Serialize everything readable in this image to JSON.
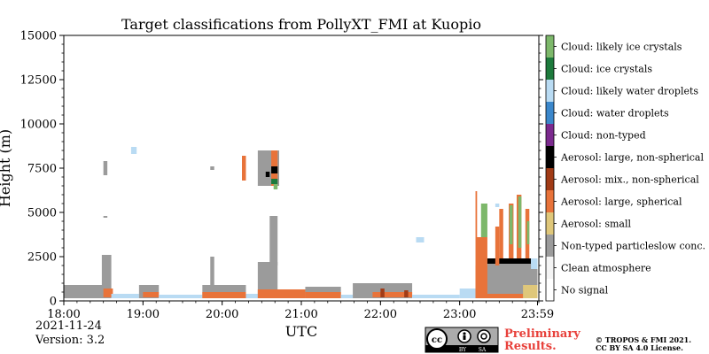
{
  "chart_data": {
    "type": "heatmap",
    "title": "Target classifications from PollyXT_FMI at Kuopio",
    "xlabel": "UTC",
    "ylabel": "Height (m)",
    "xlim": [
      18.0,
      24.0
    ],
    "ylim": [
      0,
      15000
    ],
    "x_ticks": [
      {
        "value": 18.0,
        "label": "18:00"
      },
      {
        "value": 19.0,
        "label": "19:00"
      },
      {
        "value": 20.0,
        "label": "20:00"
      },
      {
        "value": 21.0,
        "label": "21:00"
      },
      {
        "value": 22.0,
        "label": "22:00"
      },
      {
        "value": 23.0,
        "label": "23:00"
      },
      {
        "value": 23.983,
        "label": "23:59"
      }
    ],
    "y_ticks": [
      {
        "value": 0,
        "label": "0"
      },
      {
        "value": 2500,
        "label": "2500"
      },
      {
        "value": 5000,
        "label": "5000"
      },
      {
        "value": 7500,
        "label": "7500"
      },
      {
        "value": 10000,
        "label": "10000"
      },
      {
        "value": 12500,
        "label": "12500"
      },
      {
        "value": 15000,
        "label": "15000"
      }
    ],
    "classes": [
      {
        "id": 0,
        "label": "No signal",
        "color": "#ffffff"
      },
      {
        "id": 1,
        "label": "Clean atmosphere",
        "color": "#f4f4f4"
      },
      {
        "id": 2,
        "label": "Non-typed particleslow conc.",
        "color": "#9b9b9b"
      },
      {
        "id": 3,
        "label": "Aerosol: small",
        "color": "#dfc77a"
      },
      {
        "id": 4,
        "label": "Aerosol: large, spherical",
        "color": "#e8733a"
      },
      {
        "id": 5,
        "label": "Aerosol: mix., non-spherical",
        "color": "#a13b16"
      },
      {
        "id": 6,
        "label": "Aerosol: large, non-spherical",
        "color": "#000000"
      },
      {
        "id": 7,
        "label": "Cloud: non-typed",
        "color": "#7b2a8e"
      },
      {
        "id": 8,
        "label": "Cloud: water droplets",
        "color": "#3b87cb"
      },
      {
        "id": 9,
        "label": "Cloud: likely water droplets",
        "color": "#b9dbf3"
      },
      {
        "id": 10,
        "label": "Cloud: ice crystals",
        "color": "#1d7a3c"
      },
      {
        "id": 11,
        "label": "Cloud: likely ice crystals",
        "color": "#7db86b"
      }
    ],
    "regions": [
      {
        "t0": 18.0,
        "t1": 18.5,
        "h0": 150,
        "h1": 900,
        "cls": 2
      },
      {
        "t0": 18.48,
        "t1": 18.6,
        "h0": 150,
        "h1": 2600,
        "cls": 2
      },
      {
        "t0": 18.5,
        "t1": 18.62,
        "h0": 200,
        "h1": 700,
        "cls": 4
      },
      {
        "t0": 18.5,
        "t1": 18.55,
        "h0": 7100,
        "h1": 7900,
        "cls": 2
      },
      {
        "t0": 18.5,
        "t1": 18.55,
        "h0": 4700,
        "h1": 4800,
        "cls": 2
      },
      {
        "t0": 18.6,
        "t1": 18.95,
        "h0": 150,
        "h1": 400,
        "cls": 9
      },
      {
        "t0": 18.85,
        "t1": 18.92,
        "h0": 8300,
        "h1": 8700,
        "cls": 9
      },
      {
        "t0": 18.95,
        "t1": 19.2,
        "h0": 150,
        "h1": 900,
        "cls": 2
      },
      {
        "t0": 19.0,
        "t1": 19.2,
        "h0": 200,
        "h1": 500,
        "cls": 4
      },
      {
        "t0": 19.2,
        "t1": 19.75,
        "h0": 150,
        "h1": 350,
        "cls": 9
      },
      {
        "t0": 19.75,
        "t1": 20.3,
        "h0": 150,
        "h1": 900,
        "cls": 2
      },
      {
        "t0": 19.75,
        "t1": 20.3,
        "h0": 150,
        "h1": 500,
        "cls": 4
      },
      {
        "t0": 19.85,
        "t1": 19.9,
        "h0": 900,
        "h1": 2500,
        "cls": 2
      },
      {
        "t0": 19.85,
        "t1": 19.9,
        "h0": 7400,
        "h1": 7600,
        "cls": 2
      },
      {
        "t0": 20.25,
        "t1": 20.3,
        "h0": 6800,
        "h1": 8200,
        "cls": 4
      },
      {
        "t0": 20.3,
        "t1": 20.45,
        "h0": 150,
        "h1": 400,
        "cls": 9
      },
      {
        "t0": 20.45,
        "t1": 20.7,
        "h0": 150,
        "h1": 2200,
        "cls": 2
      },
      {
        "t0": 20.45,
        "t1": 21.05,
        "h0": 150,
        "h1": 650,
        "cls": 4
      },
      {
        "t0": 20.6,
        "t1": 20.7,
        "h0": 2000,
        "h1": 4800,
        "cls": 2
      },
      {
        "t0": 20.45,
        "t1": 20.72,
        "h0": 6500,
        "h1": 8500,
        "cls": 2
      },
      {
        "t0": 20.62,
        "t1": 20.7,
        "h0": 6500,
        "h1": 8500,
        "cls": 4
      },
      {
        "t0": 20.62,
        "t1": 20.7,
        "h0": 7200,
        "h1": 7600,
        "cls": 6
      },
      {
        "t0": 20.62,
        "t1": 20.7,
        "h0": 6600,
        "h1": 6900,
        "cls": 10
      },
      {
        "t0": 20.55,
        "t1": 20.6,
        "h0": 7000,
        "h1": 7300,
        "cls": 6
      },
      {
        "t0": 20.65,
        "t1": 20.7,
        "h0": 6300,
        "h1": 6600,
        "cls": 11
      },
      {
        "t0": 21.05,
        "t1": 21.5,
        "h0": 150,
        "h1": 800,
        "cls": 2
      },
      {
        "t0": 21.05,
        "t1": 21.5,
        "h0": 150,
        "h1": 500,
        "cls": 4
      },
      {
        "t0": 21.5,
        "t1": 21.65,
        "h0": 150,
        "h1": 350,
        "cls": 9
      },
      {
        "t0": 21.65,
        "t1": 22.4,
        "h0": 150,
        "h1": 1000,
        "cls": 2
      },
      {
        "t0": 21.9,
        "t1": 22.4,
        "h0": 200,
        "h1": 500,
        "cls": 4
      },
      {
        "t0": 22.0,
        "t1": 22.05,
        "h0": 200,
        "h1": 700,
        "cls": 5
      },
      {
        "t0": 22.3,
        "t1": 22.35,
        "h0": 200,
        "h1": 600,
        "cls": 5
      },
      {
        "t0": 22.4,
        "t1": 23.0,
        "h0": 150,
        "h1": 350,
        "cls": 9
      },
      {
        "t0": 22.45,
        "t1": 22.55,
        "h0": 3300,
        "h1": 3600,
        "cls": 9
      },
      {
        "t0": 23.0,
        "t1": 23.2,
        "h0": 150,
        "h1": 700,
        "cls": 9
      },
      {
        "t0": 23.2,
        "t1": 23.983,
        "h0": 150,
        "h1": 2000,
        "cls": 4
      },
      {
        "t0": 23.2,
        "t1": 23.35,
        "h0": 150,
        "h1": 3600,
        "cls": 4
      },
      {
        "t0": 23.2,
        "t1": 23.22,
        "h0": 3600,
        "h1": 6200,
        "cls": 4
      },
      {
        "t0": 23.27,
        "t1": 23.35,
        "h0": 3600,
        "h1": 5500,
        "cls": 11
      },
      {
        "t0": 23.35,
        "t1": 23.983,
        "h0": 400,
        "h1": 2100,
        "cls": 2
      },
      {
        "t0": 23.35,
        "t1": 23.9,
        "h0": 2100,
        "h1": 2400,
        "cls": 6
      },
      {
        "t0": 23.45,
        "t1": 23.5,
        "h0": 2000,
        "h1": 4200,
        "cls": 4
      },
      {
        "t0": 23.5,
        "t1": 23.55,
        "h0": 2400,
        "h1": 5200,
        "cls": 4
      },
      {
        "t0": 23.62,
        "t1": 23.68,
        "h0": 2400,
        "h1": 5500,
        "cls": 4
      },
      {
        "t0": 23.63,
        "t1": 23.67,
        "h0": 3200,
        "h1": 5400,
        "cls": 11
      },
      {
        "t0": 23.72,
        "t1": 23.78,
        "h0": 2400,
        "h1": 6000,
        "cls": 4
      },
      {
        "t0": 23.74,
        "t1": 23.78,
        "h0": 3000,
        "h1": 5900,
        "cls": 11
      },
      {
        "t0": 23.83,
        "t1": 23.88,
        "h0": 2400,
        "h1": 5200,
        "cls": 4
      },
      {
        "t0": 23.85,
        "t1": 23.88,
        "h0": 3200,
        "h1": 4500,
        "cls": 11
      },
      {
        "t0": 23.45,
        "t1": 23.5,
        "h0": 5300,
        "h1": 5500,
        "cls": 9
      },
      {
        "t0": 23.8,
        "t1": 23.983,
        "h0": 150,
        "h1": 900,
        "cls": 3
      },
      {
        "t0": 23.9,
        "t1": 23.983,
        "h0": 1800,
        "h1": 2400,
        "cls": 9
      }
    ]
  },
  "footer": {
    "date": "2021-11-24",
    "version": "Version: 3.2",
    "preliminary_line1": "Preliminary",
    "preliminary_line2": "Results.",
    "copyright_line1": "© TROPOS & FMI 2021.",
    "copyright_line2": "CC BY SA 4.0 License.",
    "license_badge": {
      "cc": "cc",
      "by": "BY",
      "sa": "SA"
    }
  }
}
